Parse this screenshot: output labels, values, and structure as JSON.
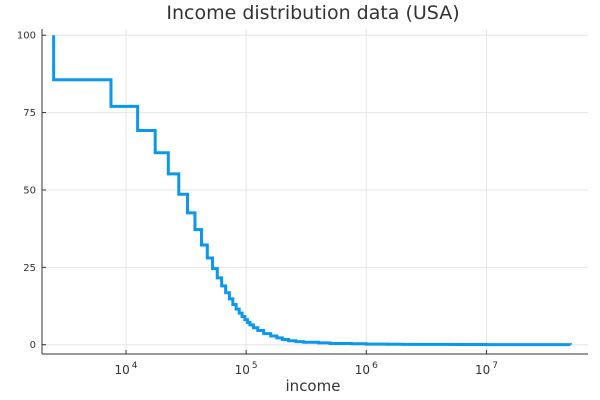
{
  "chart_data": {
    "type": "line",
    "step": "post",
    "title": "Income distribution data (USA)",
    "xlabel": "income",
    "ylabel": "",
    "xscale": "log10",
    "xlim": [
      2000,
      70000000
    ],
    "ylim": [
      -3,
      102
    ],
    "grid": true,
    "legend": "none",
    "series_color": "#0b97f0",
    "yticks": [
      0,
      25,
      50,
      75,
      100
    ],
    "xticks": [
      {
        "value": 10000,
        "base": "10",
        "exp": "4"
      },
      {
        "value": 100000,
        "base": "10",
        "exp": "5"
      },
      {
        "value": 1000000,
        "base": "10",
        "exp": "6"
      },
      {
        "value": 10000000,
        "base": "10",
        "exp": "7"
      }
    ],
    "series": [
      {
        "x": [
          2500,
          2500,
          7500,
          12500,
          17500,
          22500,
          27500,
          32500,
          37500,
          42500,
          47500,
          52500,
          57500,
          62500,
          67500,
          72500,
          77500,
          82500,
          87500,
          92500,
          97500,
          102500,
          107500,
          115000,
          125000,
          140000,
          160000,
          180000,
          200000,
          225000,
          260000,
          300000,
          400000,
          500000,
          750000,
          1000000,
          1500000,
          2000000,
          5000000,
          10000000,
          50000000
        ],
        "y": [
          100,
          85.6,
          77.0,
          69.2,
          62.0,
          55.2,
          48.6,
          42.6,
          37.2,
          32.2,
          28.0,
          24.6,
          21.6,
          19.0,
          16.8,
          14.8,
          13.0,
          11.5,
          10.2,
          9.1,
          8.1,
          7.2,
          6.4,
          5.5,
          4.6,
          3.6,
          2.8,
          2.2,
          1.7,
          1.3,
          1.0,
          0.8,
          0.6,
          0.4,
          0.3,
          0.2,
          0.15,
          0.1,
          0.05,
          0.02,
          0.01
        ]
      }
    ]
  }
}
